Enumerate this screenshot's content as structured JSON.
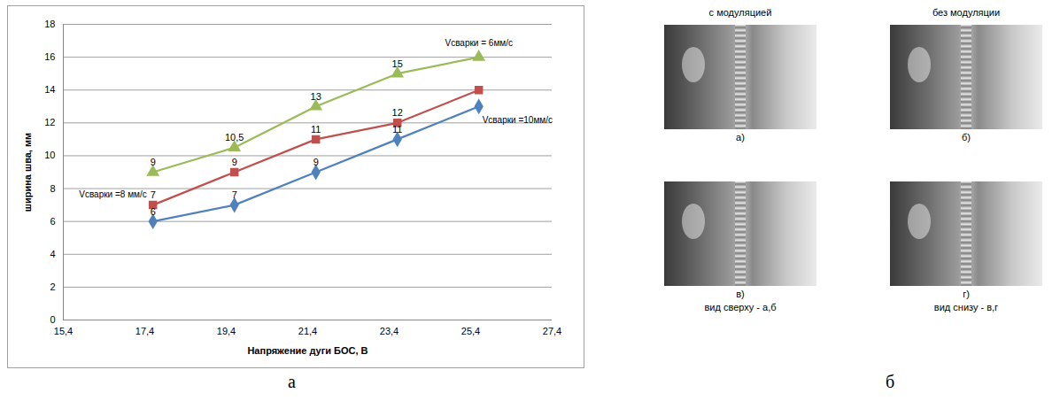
{
  "chart_data": {
    "type": "line",
    "xlabel": "Напряжение дуги БОС, В",
    "ylabel": "ширина шва, мм",
    "x": [
      17.6,
      19.6,
      21.6,
      23.6,
      25.6
    ],
    "xlim": [
      15.4,
      27.4
    ],
    "xticks": [
      {
        "value": 15.4,
        "label": "15,4"
      },
      {
        "value": 17.4,
        "label": "17,4"
      },
      {
        "value": 19.4,
        "label": "19,4"
      },
      {
        "value": 21.4,
        "label": "21,4"
      },
      {
        "value": 23.4,
        "label": "23,4"
      },
      {
        "value": 25.4,
        "label": "25,4"
      },
      {
        "value": 27.4,
        "label": "27,4"
      }
    ],
    "ylim": [
      0,
      18
    ],
    "yticks": [
      0,
      2,
      4,
      6,
      8,
      10,
      12,
      14,
      16,
      18
    ],
    "grid": true,
    "data_labels": true,
    "series": [
      {
        "name": "Vсварки = 6мм/с",
        "color": "#9bbb59",
        "marker": "triangle",
        "values": [
          9,
          10.5,
          13,
          15,
          16
        ],
        "value_labels": [
          "9",
          "10,5",
          "13",
          "15",
          null
        ]
      },
      {
        "name": "Vсварки =8 мм/с",
        "color": "#c0504d",
        "marker": "square",
        "values": [
          7,
          9,
          11,
          12,
          14
        ],
        "value_labels": [
          "7",
          "9",
          "11",
          "12",
          null
        ]
      },
      {
        "name": "Vсварки =10мм/с",
        "color": "#4f81bd",
        "marker": "diamond",
        "values": [
          6,
          7,
          9,
          11,
          13
        ],
        "value_labels": [
          "6",
          "7",
          "9",
          "11",
          null
        ]
      }
    ]
  },
  "panel_labels": [
    "а",
    "б"
  ],
  "photos": {
    "columns": [
      "с модуляцией",
      "без модуляции"
    ],
    "images": [
      "а)",
      "б)",
      "в)",
      "г)"
    ],
    "captions": [
      "вид сверху - а,б",
      "вид снизу - в,г"
    ]
  }
}
